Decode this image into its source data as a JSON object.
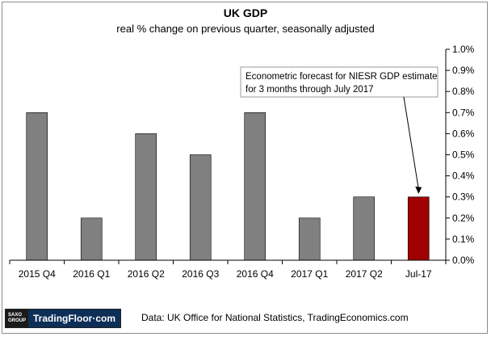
{
  "header": {
    "title": "UK GDP",
    "subtitle": "real % change on previous quarter, seasonally adjusted"
  },
  "annotation": {
    "line1": "Econometric forecast for NIESR GDP estimate",
    "line2": "for 3 months through July 2017"
  },
  "footer": {
    "logo_top": "SAXO",
    "logo_bottom": "GROUP",
    "logo_brand": "TradingFloor·com",
    "source": "Data: UK Office for National Statistics, TradingEconomics.com"
  },
  "chart_data": {
    "type": "bar",
    "title": "UK GDP",
    "subtitle": "real % change on previous quarter, seasonally adjusted",
    "categories": [
      "2015 Q4",
      "2016 Q1",
      "2016 Q2",
      "2016 Q3",
      "2016 Q4",
      "2017 Q1",
      "2017 Q2",
      "Jul-17"
    ],
    "values": [
      0.7,
      0.2,
      0.6,
      0.5,
      0.7,
      0.2,
      0.3,
      0.3
    ],
    "colors": [
      "#808080",
      "#808080",
      "#808080",
      "#808080",
      "#808080",
      "#808080",
      "#808080",
      "#a00000"
    ],
    "ylim": [
      0,
      1.0
    ],
    "yticks": [
      0.0,
      0.1,
      0.2,
      0.3,
      0.4,
      0.5,
      0.6,
      0.7,
      0.8,
      0.9,
      1.0
    ],
    "ytick_labels": [
      "0.0%",
      "0.1%",
      "0.2%",
      "0.3%",
      "0.4%",
      "0.5%",
      "0.6%",
      "0.7%",
      "0.8%",
      "0.9%",
      "1.0%"
    ],
    "y_axis_side": "right",
    "grid": false
  }
}
